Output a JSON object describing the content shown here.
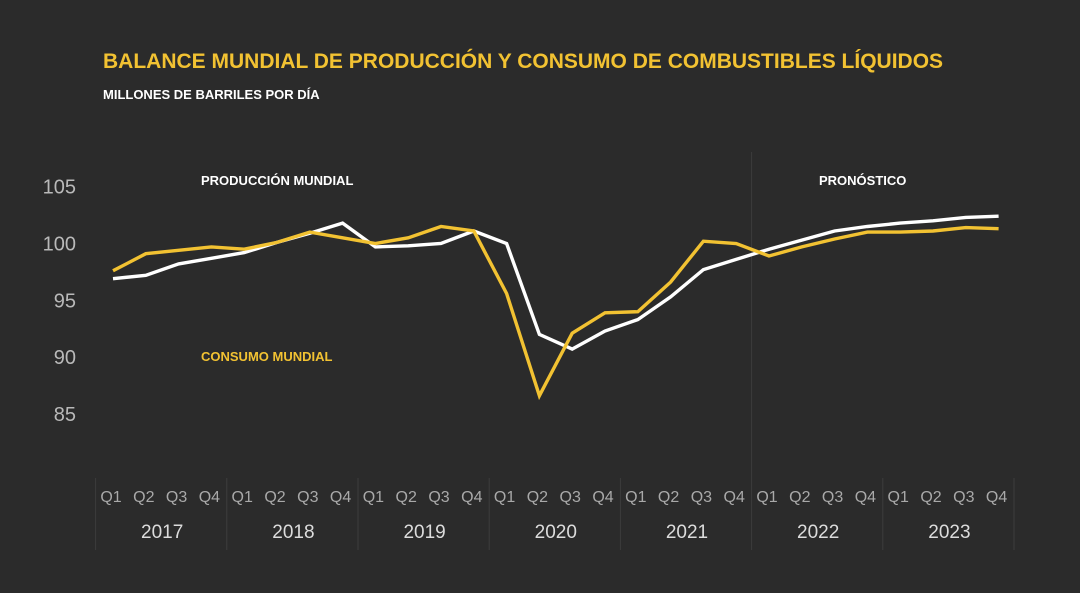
{
  "chart_data": {
    "type": "line",
    "title": "BALANCE MUNDIAL DE PRODUCCIÓN Y CONSUMO DE COMBUSTIBLES LÍQUIDOS",
    "subtitle": "MILLONES DE BARRILES POR DÍA",
    "ylim": [
      80,
      108
    ],
    "yticks": [
      105,
      100,
      95,
      90,
      85
    ],
    "years": [
      "2017",
      "2018",
      "2019",
      "2020",
      "2021",
      "2022",
      "2023"
    ],
    "quarters": [
      "Q1",
      "Q2",
      "Q3",
      "Q4"
    ],
    "forecast_label": "PRONÓSTICO",
    "forecast_from_year": "2022",
    "series": [
      {
        "name": "PRODUCCIÓN MUNDIAL",
        "color": "#ffffff",
        "values": [
          96.9,
          97.2,
          98.2,
          98.7,
          99.2,
          100.1,
          100.9,
          101.8,
          99.7,
          99.8,
          100.0,
          101.1,
          100.0,
          92.0,
          90.7,
          92.3,
          93.3,
          95.3,
          97.7,
          98.6,
          99.5,
          100.3,
          101.1,
          101.5,
          101.8,
          102.0,
          102.3,
          102.4
        ]
      },
      {
        "name": "CONSUMO MUNDIAL",
        "color": "#f2c232",
        "values": [
          97.6,
          99.1,
          99.4,
          99.7,
          99.5,
          100.1,
          101.0,
          100.5,
          100.0,
          100.5,
          101.5,
          101.1,
          95.6,
          86.6,
          92.1,
          93.9,
          94.0,
          96.6,
          100.2,
          100.0,
          98.9,
          99.7,
          100.4,
          101.0,
          101.0,
          101.1,
          101.4,
          101.3
        ]
      }
    ]
  }
}
